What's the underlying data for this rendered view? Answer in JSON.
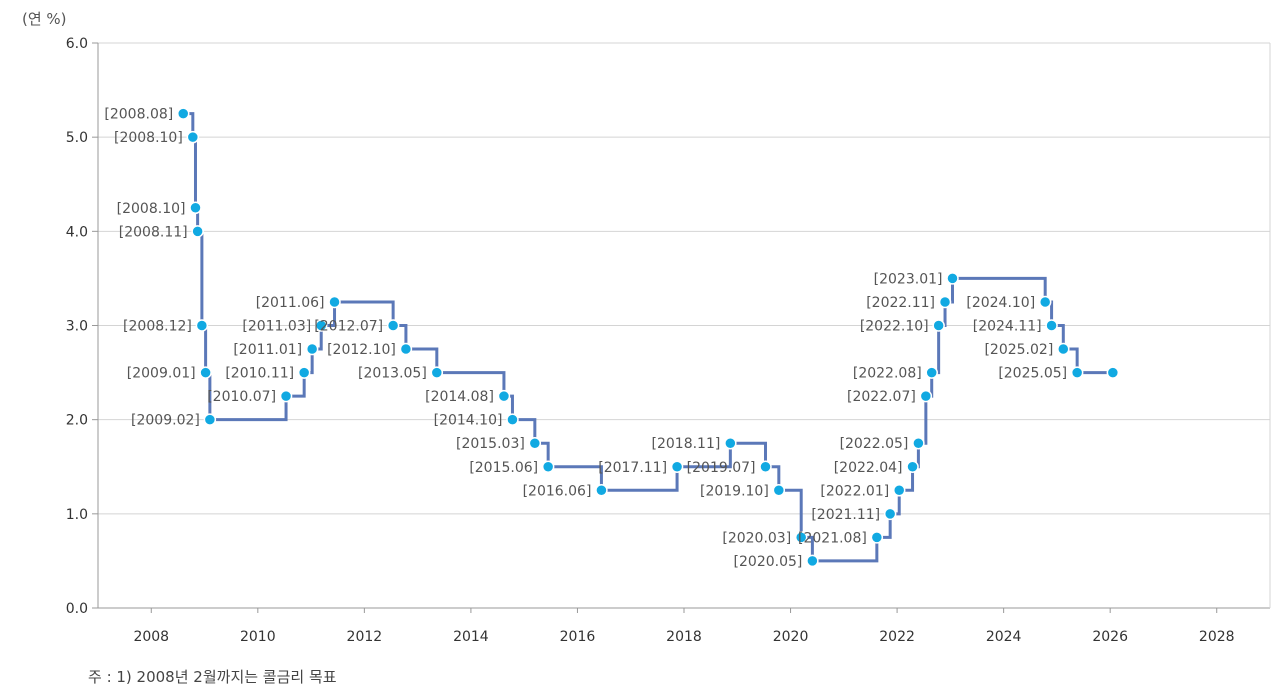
{
  "chart_data": {
    "type": "line",
    "step": true,
    "unit_label": "(연 %)",
    "note": "주 : 1) 2008년 2월까지는 콜금리 목표",
    "xlim": [
      2007,
      2029
    ],
    "ylim": [
      0,
      6
    ],
    "x_ticks": [
      "2008",
      "2010",
      "2012",
      "2014",
      "2016",
      "2018",
      "2020",
      "2022",
      "2024",
      "2026",
      "2028"
    ],
    "y_ticks": [
      "0.0",
      "1.0",
      "2.0",
      "3.0",
      "4.0",
      "5.0",
      "6.0"
    ],
    "grid": "horizontal",
    "line_color": "#5b78b8",
    "point_color": "#11a9e2",
    "points": [
      {
        "label": "[2008.08]",
        "x": 2008.6,
        "y": 5.25
      },
      {
        "label": "[2008.10]",
        "x": 2008.78,
        "y": 5.0
      },
      {
        "label": "[2008.10]",
        "x": 2008.83,
        "y": 4.25
      },
      {
        "label": "[2008.11]",
        "x": 2008.87,
        "y": 4.0
      },
      {
        "label": "[2008.12]",
        "x": 2008.95,
        "y": 3.0
      },
      {
        "label": "[2009.01]",
        "x": 2009.02,
        "y": 2.5
      },
      {
        "label": "[2009.02]",
        "x": 2009.1,
        "y": 2.0
      },
      {
        "label": "[2010.07]",
        "x": 2010.53,
        "y": 2.25
      },
      {
        "label": "[2010.11]",
        "x": 2010.87,
        "y": 2.5
      },
      {
        "label": "[2011.01]",
        "x": 2011.02,
        "y": 2.75
      },
      {
        "label": "[2011.03]",
        "x": 2011.19,
        "y": 3.0
      },
      {
        "label": "[2011.06]",
        "x": 2011.44,
        "y": 3.25
      },
      {
        "label": "[2012.07]",
        "x": 2012.54,
        "y": 3.0
      },
      {
        "label": "[2012.10]",
        "x": 2012.78,
        "y": 2.75
      },
      {
        "label": "[2013.05]",
        "x": 2013.36,
        "y": 2.5
      },
      {
        "label": "[2014.08]",
        "x": 2014.62,
        "y": 2.25
      },
      {
        "label": "[2014.10]",
        "x": 2014.78,
        "y": 2.0
      },
      {
        "label": "[2015.03]",
        "x": 2015.2,
        "y": 1.75
      },
      {
        "label": "[2015.06]",
        "x": 2015.45,
        "y": 1.5
      },
      {
        "label": "[2016.06]",
        "x": 2016.45,
        "y": 1.25
      },
      {
        "label": "[2017.11]",
        "x": 2017.87,
        "y": 1.5
      },
      {
        "label": "[2018.11]",
        "x": 2018.87,
        "y": 1.75
      },
      {
        "label": "[2019.07]",
        "x": 2019.53,
        "y": 1.5
      },
      {
        "label": "[2019.10]",
        "x": 2019.78,
        "y": 1.25
      },
      {
        "label": "[2020.03]",
        "x": 2020.2,
        "y": 0.75
      },
      {
        "label": "[2020.05]",
        "x": 2020.41,
        "y": 0.5
      },
      {
        "label": "[2021.08]",
        "x": 2021.62,
        "y": 0.75
      },
      {
        "label": "[2021.11]",
        "x": 2021.87,
        "y": 1.0
      },
      {
        "label": "[2022.01]",
        "x": 2022.04,
        "y": 1.25
      },
      {
        "label": "[2022.04]",
        "x": 2022.29,
        "y": 1.5
      },
      {
        "label": "[2022.05]",
        "x": 2022.4,
        "y": 1.75
      },
      {
        "label": "[2022.07]",
        "x": 2022.54,
        "y": 2.25
      },
      {
        "label": "[2022.08]",
        "x": 2022.65,
        "y": 2.5
      },
      {
        "label": "[2022.10]",
        "x": 2022.78,
        "y": 3.0
      },
      {
        "label": "[2022.11]",
        "x": 2022.9,
        "y": 3.25
      },
      {
        "label": "[2023.01]",
        "x": 2023.04,
        "y": 3.5
      },
      {
        "label": "[2024.10]",
        "x": 2024.78,
        "y": 3.25
      },
      {
        "label": "[2024.11]",
        "x": 2024.9,
        "y": 3.0
      },
      {
        "label": "[2025.02]",
        "x": 2025.12,
        "y": 2.75
      },
      {
        "label": "[2025.05]",
        "x": 2025.38,
        "y": 2.5
      },
      {
        "label": "",
        "x": 2026.05,
        "y": 2.5
      }
    ]
  }
}
